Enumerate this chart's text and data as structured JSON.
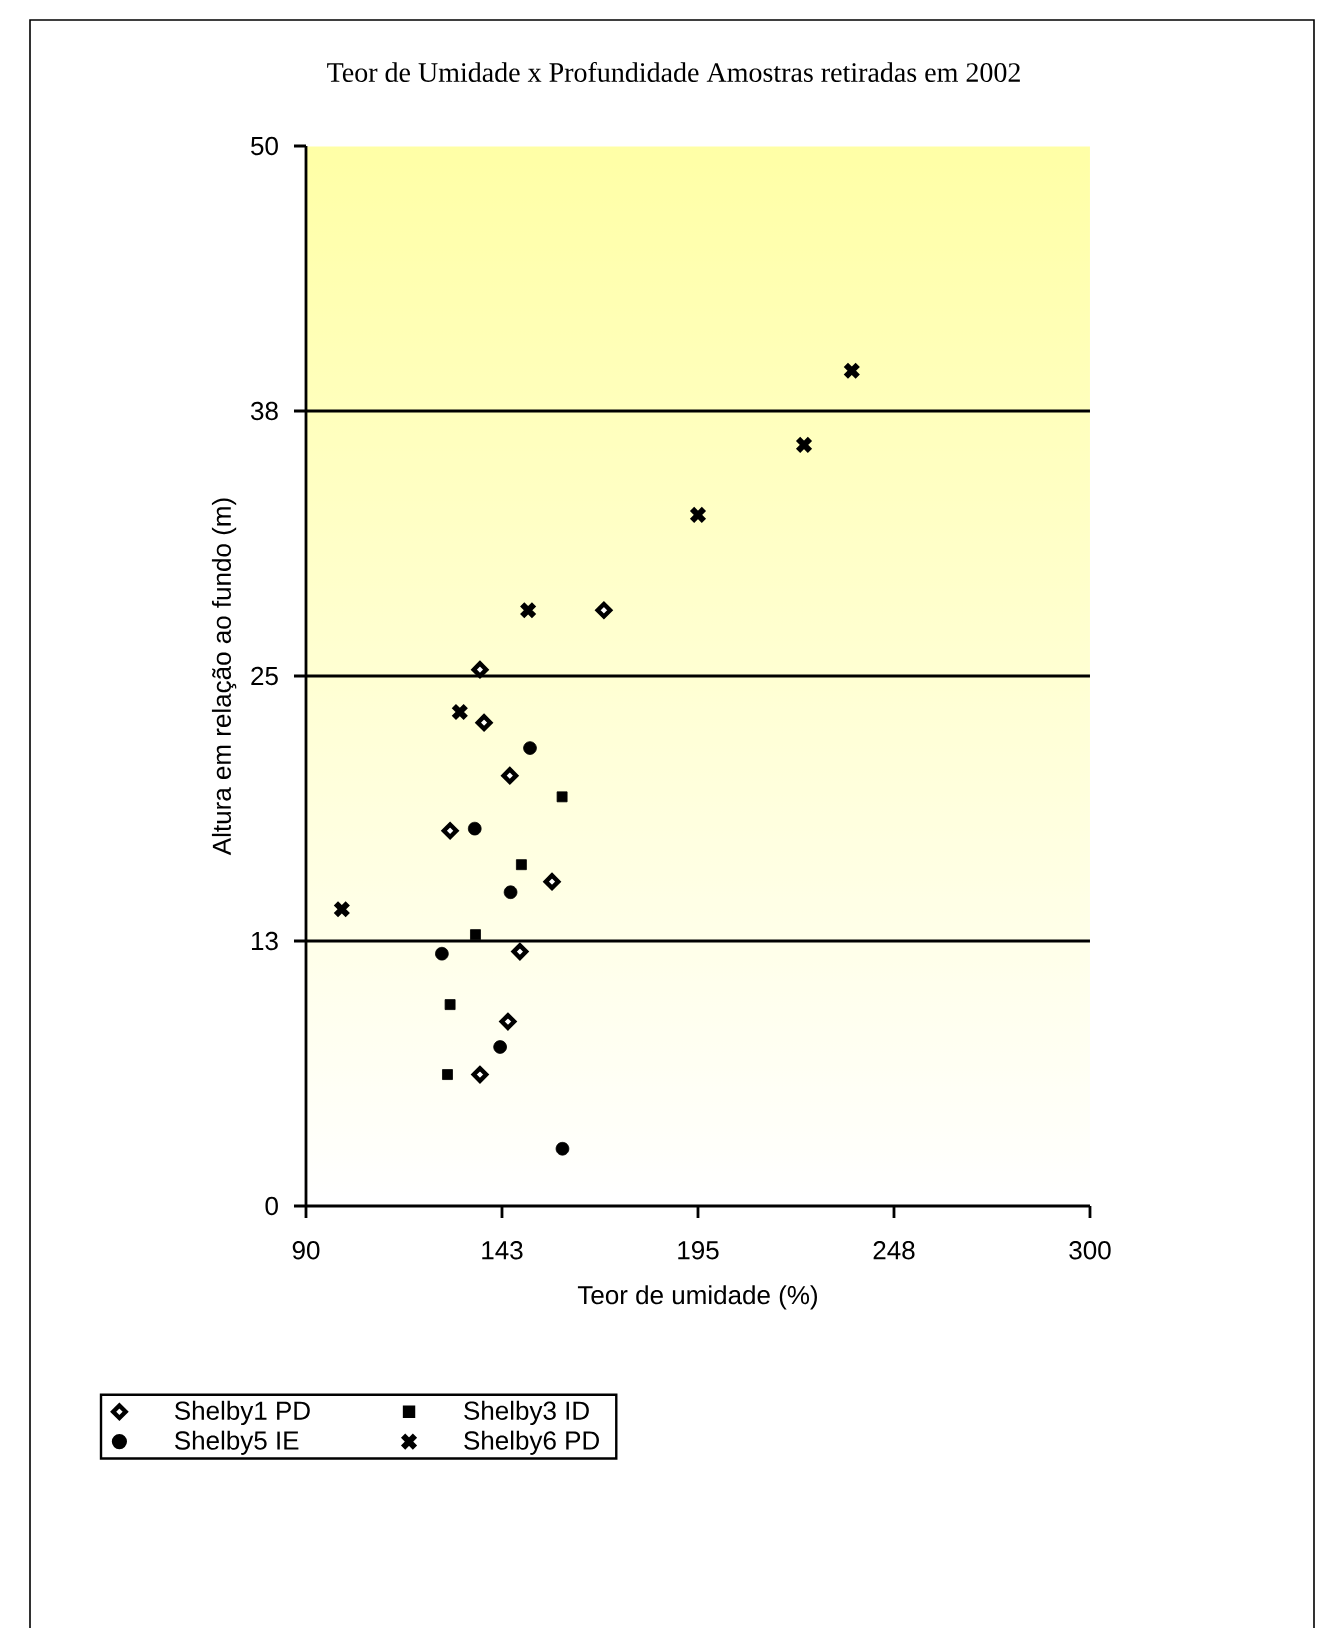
{
  "chart_data": {
    "type": "scatter",
    "title": "Teor de Umidade x Profundidade Amostras retiradas em 2002",
    "xlabel": "Teor de umidade (%)",
    "ylabel": "Altura em relação ao fundo (m)",
    "xlim": [
      90,
      300
    ],
    "ylim": [
      0,
      50
    ],
    "xticks": [
      90,
      {
        "value": 142.5,
        "label": "143"
      },
      195,
      {
        "value": 247.5,
        "label": "248"
      },
      300
    ],
    "yticks": [
      0,
      {
        "value": 12.5,
        "label": "13"
      },
      25,
      {
        "value": 37.5,
        "label": "38"
      },
      50
    ],
    "grid": "y",
    "legend": "bottom",
    "series": [
      {
        "name": "Shelby1 PD",
        "color": "#000000",
        "marker": "diamond",
        "x": [
          169.8,
          136.6,
          137.7,
          144.6,
          128.6,
          155.9,
          147.3,
          144.1,
          136.6
        ],
        "values": [
          28.1,
          25.3,
          22.8,
          20.3,
          17.7,
          15.3,
          12.0,
          8.7,
          6.2
        ]
      },
      {
        "name": "Shelby3 ID",
        "color": "#000000",
        "marker": "square",
        "x": [
          158.6,
          147.7,
          135.4,
          128.6,
          127.9
        ],
        "values": [
          19.3,
          16.1,
          12.8,
          9.5,
          6.2
        ]
      },
      {
        "name": "Shelby5 IE",
        "color": "#000000",
        "marker": "circle",
        "x": [
          150.0,
          135.2,
          144.8,
          126.4,
          142.0,
          158.7
        ],
        "values": [
          21.6,
          17.8,
          14.8,
          11.9,
          7.5,
          2.7
        ]
      },
      {
        "name": "Shelby6 PD",
        "color": "#000000",
        "marker": "cross",
        "x": [
          236.2,
          223.4,
          195.0,
          149.5,
          131.2,
          99.6
        ],
        "values": [
          39.4,
          35.9,
          32.6,
          28.1,
          23.3,
          14.0
        ]
      }
    ]
  }
}
